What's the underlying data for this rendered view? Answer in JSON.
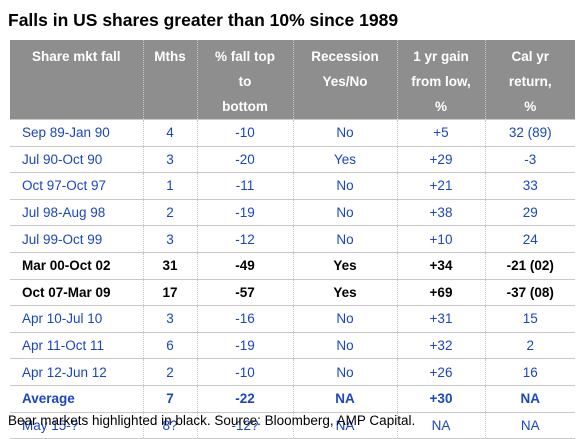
{
  "title": "Falls in US shares greater than 10% since 1989",
  "table": {
    "header": [
      [
        "Share mkt fall"
      ],
      [
        "Mths"
      ],
      [
        "% fall top",
        "to",
        "bottom"
      ],
      [
        "Recession",
        "Yes/No"
      ],
      [
        "1 yr gain",
        "from low,",
        "%"
      ],
      [
        "Cal yr",
        "return,",
        "%"
      ]
    ],
    "rows": [
      {
        "style": "normal",
        "cells": [
          "Sep 89-Jan 90",
          "4",
          "-10",
          "No",
          "+5",
          "32 (89)"
        ]
      },
      {
        "style": "normal",
        "cells": [
          "Jul 90-Oct 90",
          "3",
          "-20",
          "Yes",
          "+29",
          "-3"
        ]
      },
      {
        "style": "normal",
        "cells": [
          "Oct 97-Oct 97",
          "1",
          "-11",
          "No",
          "+21",
          "33"
        ]
      },
      {
        "style": "normal",
        "cells": [
          "Jul 98-Aug 98",
          "2",
          "-19",
          "No",
          "+38",
          "29"
        ]
      },
      {
        "style": "normal",
        "cells": [
          "Jul 99-Oct 99",
          "3",
          "-12",
          "No",
          "+10",
          "24"
        ]
      },
      {
        "style": "bear",
        "cells": [
          "Mar 00-Oct 02",
          "31",
          "-49",
          "Yes",
          "+34",
          "-21 (02)"
        ]
      },
      {
        "style": "bear",
        "cells": [
          "Oct 07-Mar 09",
          "17",
          "-57",
          "Yes",
          "+69",
          "-37 (08)"
        ]
      },
      {
        "style": "normal",
        "cells": [
          "Apr 10-Jul 10",
          "3",
          "-16",
          "No",
          "+31",
          "15"
        ]
      },
      {
        "style": "normal",
        "cells": [
          "Apr 11-Oct 11",
          "6",
          "-19",
          "No",
          "+32",
          "2"
        ]
      },
      {
        "style": "normal",
        "cells": [
          "Apr 12-Jun 12",
          "2",
          "-10",
          "No",
          "+26",
          "16"
        ]
      },
      {
        "style": "average",
        "cells": [
          "Average",
          "7",
          "-22",
          "NA",
          "+30",
          "NA"
        ]
      },
      {
        "style": "normal",
        "cells": [
          "May 15-?",
          "8?",
          "-12?",
          "NA",
          "NA",
          "NA"
        ]
      }
    ]
  },
  "note": "Bear markets highlighted in black. Source: Bloomberg, AMP Capital."
}
